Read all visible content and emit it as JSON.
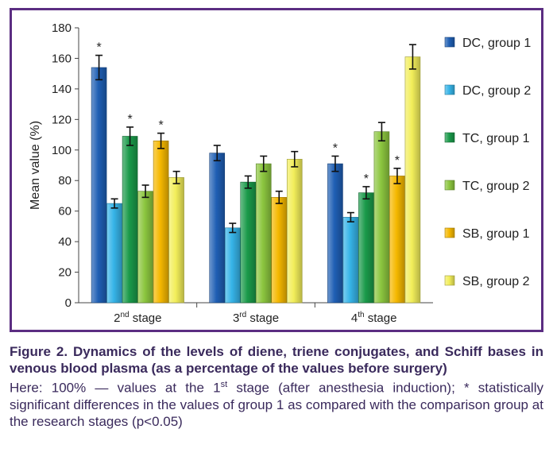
{
  "chart_data": {
    "type": "bar",
    "ylabel": "Mean value (%)",
    "ylim": [
      0,
      180
    ],
    "yticks": [
      0,
      20,
      40,
      60,
      80,
      100,
      120,
      140,
      160,
      180
    ],
    "categories": [
      {
        "main": "2",
        "sup": "nd",
        "rest": " stage"
      },
      {
        "main": "3",
        "sup": "rd",
        "rest": " stage"
      },
      {
        "main": "4",
        "sup": "th",
        "rest": " stage"
      }
    ],
    "series": [
      {
        "name": "DC, group 1",
        "color": "#1f5fb4",
        "values": [
          154,
          98,
          91
        ],
        "errors": [
          8,
          5,
          5
        ],
        "significant": [
          true,
          false,
          true
        ]
      },
      {
        "name": "DC, group 2",
        "color": "#36b4e8",
        "values": [
          65,
          49,
          56
        ],
        "errors": [
          3,
          3,
          3
        ],
        "significant": [
          false,
          false,
          false
        ]
      },
      {
        "name": "TC, group 1",
        "color": "#1a9a4a",
        "values": [
          109,
          79,
          72
        ],
        "errors": [
          6,
          4,
          4
        ],
        "significant": [
          true,
          false,
          true
        ]
      },
      {
        "name": "TC, group 2",
        "color": "#8cc63f",
        "values": [
          73,
          91,
          112
        ],
        "errors": [
          4,
          5,
          6
        ],
        "significant": [
          false,
          false,
          false
        ]
      },
      {
        "name": "SB, group 1",
        "color": "#f5b800",
        "values": [
          106,
          69,
          83
        ],
        "errors": [
          5,
          4,
          5
        ],
        "significant": [
          true,
          false,
          true
        ]
      },
      {
        "name": "SB, group 2",
        "color": "#f2ee5a",
        "values": [
          82,
          94,
          161
        ],
        "errors": [
          4,
          5,
          8
        ],
        "significant": [
          false,
          false,
          false
        ]
      }
    ],
    "significance_marker": "*",
    "legend_position": "right",
    "grid": false
  },
  "caption": {
    "title": "Figure 2. Dynamics of the levels of diene, triene conjugates, and Schiff bases in venous blood plasma (as a percentage of the values before surgery)",
    "note_part1": "Here: 100% — values at the 1",
    "note_sup": "st",
    "note_part2": " stage (after anesthesia induction); * statistically significant differences in the values of group 1 as compared with the comparison group at the research stages (p<0.05)"
  }
}
